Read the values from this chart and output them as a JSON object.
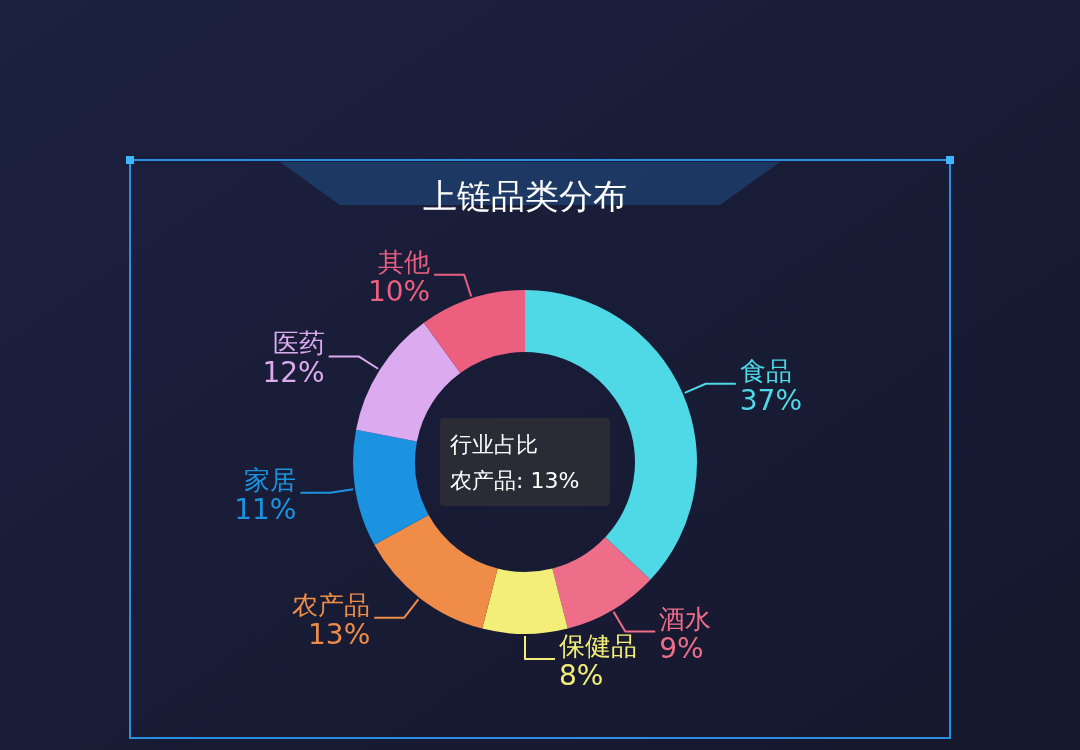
{
  "chart_data": {
    "type": "donut",
    "title": "上链品类分布",
    "categories": [
      "食品",
      "酒水",
      "保健品",
      "农产品",
      "家居",
      "医药",
      "其他"
    ],
    "values": [
      37,
      9,
      8,
      13,
      11,
      12,
      10
    ],
    "colors": [
      "#4fd8e6",
      "#ee6e8a",
      "#f2ee78",
      "#ee8c48",
      "#1b93e0",
      "#dcaaee",
      "#ec5f7f"
    ],
    "value_labels": [
      "37%",
      "9%",
      "8%",
      "13%",
      "11%",
      "12%",
      "10%"
    ],
    "annotations": [
      "行业占比",
      "农产品: 13%"
    ]
  }
}
